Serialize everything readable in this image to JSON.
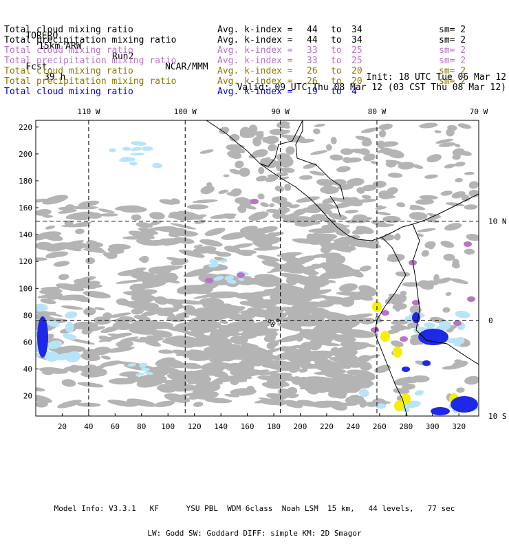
{
  "header": {
    "model": "TORERO",
    "resolution": "15km ARW",
    "run": "Run2",
    "org": "NCAR/MMM",
    "init": "Init: 18 UTC Tue 06 Mar 12",
    "fcst_label": "Fcst.",
    "fcst_value": "39 h",
    "valid": "Valid: 09 UTC Thu 08 Mar 12 (03 CST Thu 08 Mar 12)"
  },
  "legend": [
    {
      "label": "Total cloud mixing ratio",
      "avg": "Avg. k-index =",
      "k1": "44",
      "to": "to",
      "k2": "34",
      "sm": "sm= 2",
      "color": "#000000"
    },
    {
      "label": "Total precipitation mixing ratio",
      "avg": "Avg. k-index =",
      "k1": "44",
      "to": "to",
      "k2": "34",
      "sm": "sm= 2",
      "color": "#000000"
    },
    {
      "label": "Total cloud mixing ratio",
      "avg": "Avg. k-index =",
      "k1": "33",
      "to": "to",
      "k2": "25",
      "sm": "sm= 2",
      "color": "#b873c8"
    },
    {
      "label": "Total precipitation mixing ratio",
      "avg": "Avg. k-index =",
      "k1": "33",
      "to": "to",
      "k2": "25",
      "sm": "sm= 2",
      "color": "#b873c8"
    },
    {
      "label": "Total cloud mixing ratio",
      "avg": "Avg. k-index =",
      "k1": "26",
      "to": "to",
      "k2": "20",
      "sm": "sm= 2",
      "color": "#8a7a00"
    },
    {
      "label": "Total precipitation mixing ratio",
      "avg": "Avg. k-index =",
      "k1": "26",
      "to": "to",
      "k2": "20",
      "sm": "sm= 2",
      "color": "#8a7a00"
    },
    {
      "label": "Total cloud mixing ratio",
      "avg": "Avg. k-index =",
      "k1": "19",
      "to": "to",
      "k2": "4",
      "sm": "",
      "color": "#0000d0"
    }
  ],
  "map": {
    "lon_labels": [
      "110 W",
      "100 W",
      "90 W",
      "80 W",
      "70 W"
    ],
    "lat_labels": [
      "10 N",
      "0",
      "10 S"
    ],
    "y_ticks": [
      "220",
      "200",
      "180",
      "160",
      "140",
      "120",
      "100",
      "80",
      "60",
      "40",
      "20"
    ],
    "x_ticks": [
      "20",
      "40",
      "60",
      "80",
      "100",
      "120",
      "140",
      "160",
      "180",
      "200",
      "220",
      "240",
      "260",
      "280",
      "300",
      "320"
    ],
    "x_range": [
      0,
      335
    ],
    "y_range": [
      5,
      225
    ],
    "lon_gridlines": [
      40,
      113,
      185,
      258
    ],
    "lat_gridline": 150,
    "equator_gridline": 76,
    "colors": {
      "cloud_gray": "#b4b4b4",
      "light_blue": "#b8e4f8",
      "blue": "#1e28e6",
      "purple": "#b873c8",
      "yellow": "#f6f000",
      "coast": "#000000"
    }
  },
  "footer": {
    "line1": "Model Info: V3.3.1   KF      YSU PBL  WDM 6class  Noah LSM  15 km,   44 levels,   77 sec",
    "line2": "LW: Godd SW: Goddard DIFF: simple KM: 2D Smagor"
  }
}
